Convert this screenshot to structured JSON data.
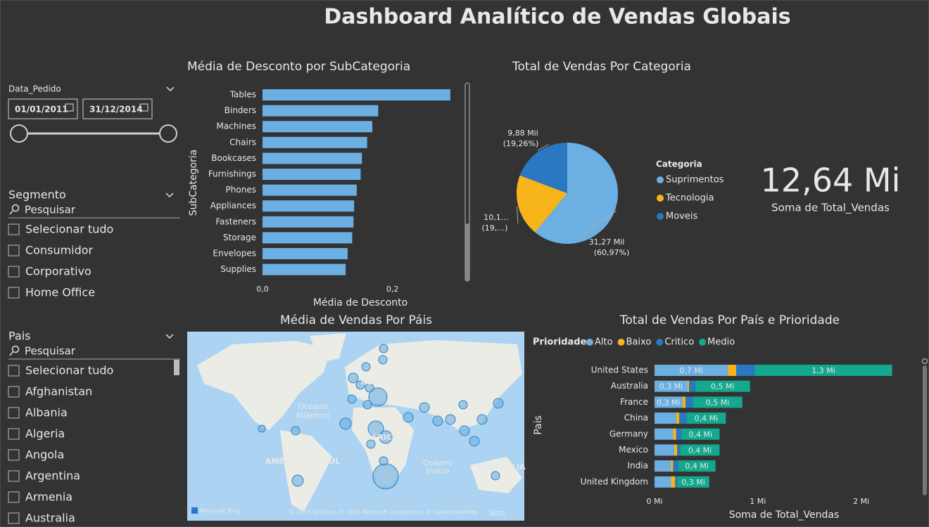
{
  "title": "Dashboard Analítico de Vendas Globais",
  "filters": {
    "date": {
      "label": "Data_Pedido",
      "start": "01/01/2011",
      "end": "31/12/2014"
    },
    "segment": {
      "label": "Segmento",
      "search": "Pesquisar",
      "items": [
        "Selecionar tudo",
        "Consumidor",
        "Corporativo",
        "Home Office"
      ]
    },
    "country": {
      "label": "Pais",
      "search": "Pesquisar",
      "items": [
        "Selecionar tudo",
        "Afghanistan",
        "Albania",
        "Algeria",
        "Angola",
        "Argentina",
        "Armenia",
        "Australia"
      ]
    }
  },
  "card": {
    "value": "12,64 Mi",
    "label": "Soma de Total_Vendas"
  },
  "map": {
    "title": "Média de Vendas Por Páis",
    "labels": [
      "AMÉRICA DO NORTE",
      "EUROPA",
      "ÁSIA",
      "Oceano",
      "Atlântico",
      "ÁFRICA",
      "AMÉRICA DO SUL",
      "Oceano",
      "Índico",
      "AUSTRÁLIA"
    ],
    "brand": "Microsoft Bing",
    "attribution": "© 2023 TomTom, © 2023 Microsoft Corporation, © OpenStreetMap",
    "terms": "Terms"
  },
  "chart_data": [
    {
      "type": "hbar",
      "title": "Média de Desconto por SubCategoria",
      "x_label": "Média de Desconto",
      "y_label": "SubCategoria",
      "categories": [
        "Tables",
        "Binders",
        "Machines",
        "Chairs",
        "Bookcases",
        "Furnishings",
        "Phones",
        "Appliances",
        "Fasteners",
        "Storage",
        "Envelopes",
        "Supplies"
      ],
      "values": [
        0.289,
        0.178,
        0.169,
        0.161,
        0.153,
        0.151,
        0.145,
        0.141,
        0.14,
        0.138,
        0.131,
        0.128
      ],
      "color": "#6cb0e3",
      "xlim": [
        0,
        0.3
      ],
      "xticks": [
        {
          "value": 0,
          "label": "0,0"
        },
        {
          "value": 0.2,
          "label": "0,2"
        }
      ]
    },
    {
      "type": "pie",
      "title": "Total de Vendas Por Categoria",
      "legend_title": "Categoria",
      "categories": [
        "Suprimentos",
        "Tecnologia",
        "Moveis"
      ],
      "values": [
        31.27,
        10.14,
        9.88
      ],
      "value_labels": [
        "31,27 Mil",
        "10,1…",
        "9,88 Mil"
      ],
      "percents": [
        60.97,
        19.77,
        19.26
      ],
      "percent_labels": [
        "(60,97%)",
        "(19,…)",
        "(19,26%)"
      ],
      "colors": [
        "#6cb0e3",
        "#f8b51b",
        "#2a77c2"
      ]
    },
    {
      "type": "stacked_hbar",
      "title": "Total de Vendas Por País e Prioridade",
      "legend_title": "Prioridade",
      "x_label": "Soma de Total_Vendas",
      "y_label": "Pais",
      "categories": [
        "United States",
        "Australia",
        "France",
        "China",
        "Germany",
        "Mexico",
        "India",
        "United Kingdom"
      ],
      "series": [
        {
          "name": "Alto",
          "color": "#6cb0e3",
          "values": [
            0.71,
            0.32,
            0.27,
            0.21,
            0.18,
            0.19,
            0.16,
            0.16
          ],
          "value_labels": [
            "0,7 Mi",
            "0,3 Mi",
            "0,3 Mi",
            null,
            null,
            null,
            null,
            null
          ]
        },
        {
          "name": "Baixo",
          "color": "#f8b51b",
          "values": [
            0.08,
            0.014,
            0.03,
            0.03,
            0.03,
            0.03,
            0.02,
            0.04
          ]
        },
        {
          "name": "Critico",
          "color": "#2a77c2",
          "values": [
            0.18,
            0.06,
            0.07,
            0.07,
            0.05,
            0.03,
            0.05,
            0.02
          ]
        },
        {
          "name": "Medio",
          "color": "#14a88e",
          "values": [
            1.33,
            0.53,
            0.48,
            0.38,
            0.37,
            0.38,
            0.36,
            0.31
          ],
          "value_labels": [
            "1,3 Mi",
            "0,5 Mi",
            "0,5 Mi",
            "0,4 Mi",
            "0,4 Mi",
            "0,4 Mi",
            "0,4 Mi",
            "0,3 Mi"
          ]
        }
      ],
      "xlim": [
        0,
        2.35
      ],
      "xticks": [
        {
          "value": 0,
          "label": "0 Mi"
        },
        {
          "value": 1,
          "label": "1 Mi"
        },
        {
          "value": 2,
          "label": "2 Mi"
        }
      ]
    }
  ]
}
